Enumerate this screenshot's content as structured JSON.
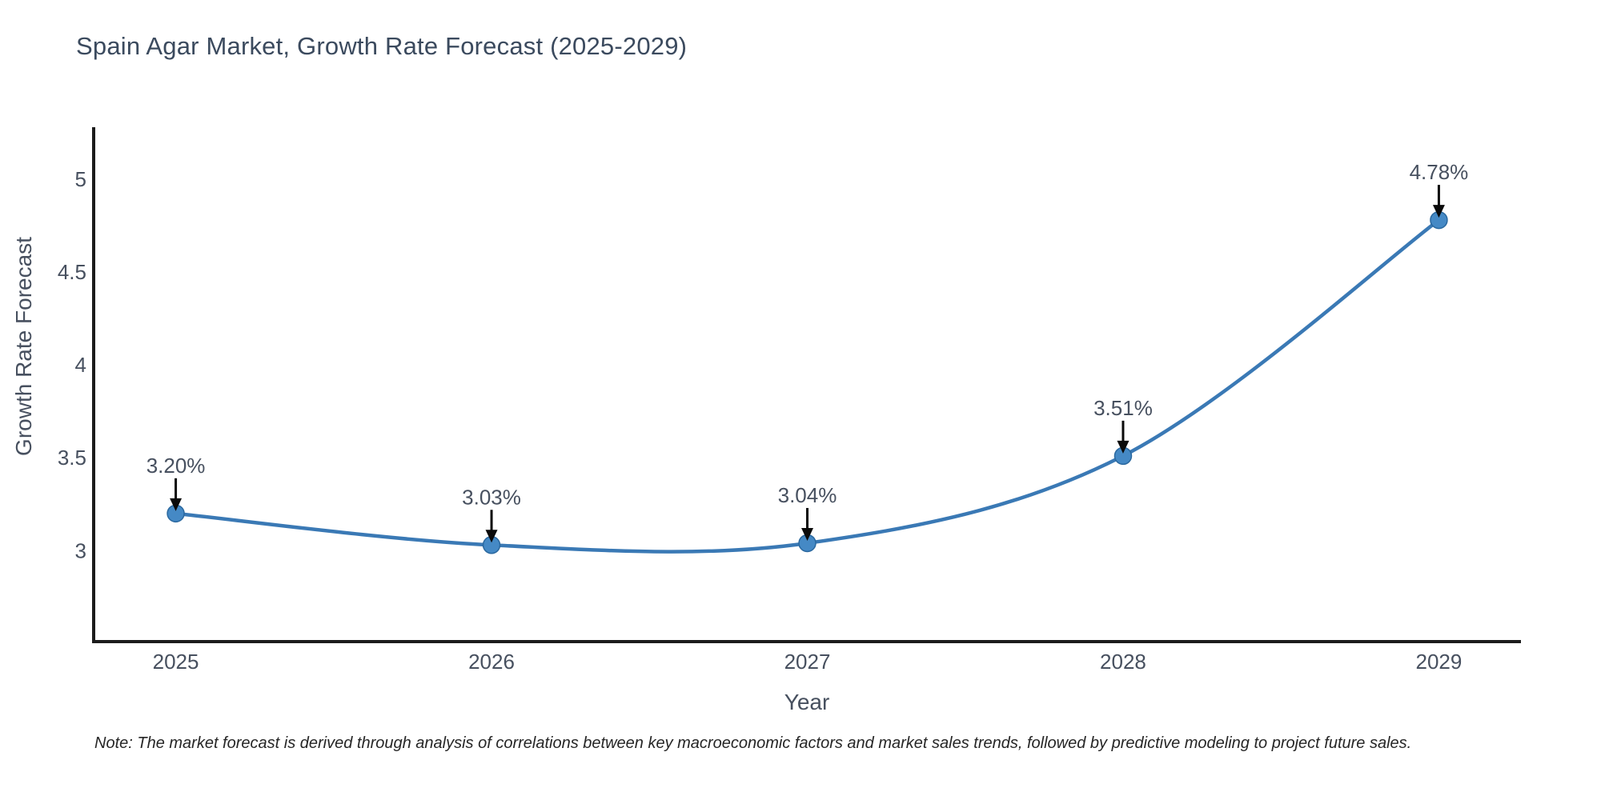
{
  "chart_data": {
    "type": "line",
    "title": "Spain Agar Market, Growth Rate Forecast (2025-2029)",
    "xlabel": "Year",
    "ylabel": "Growth Rate Forecast",
    "x": [
      2025,
      2026,
      2027,
      2028,
      2029
    ],
    "series": [
      {
        "name": "Growth Rate Forecast",
        "values": [
          3.2,
          3.03,
          3.04,
          3.51,
          4.78
        ],
        "point_labels": [
          "3.20%",
          "3.03%",
          "3.04%",
          "3.51%",
          "4.78%"
        ]
      }
    ],
    "xticks": [
      "2025",
      "2026",
      "2027",
      "2028",
      "2029"
    ],
    "yticks": [
      3,
      3.5,
      4,
      4.5,
      5
    ],
    "xlim": [
      2024.74,
      2029.26
    ],
    "ylim": [
      2.51,
      5.28
    ],
    "grid": false,
    "legend": "none",
    "annotation_style": "label-with-down-arrow",
    "marker": "circle",
    "smooth": true,
    "colors": {
      "line": "#3a79b5",
      "marker_fill": "#4589c5",
      "marker_edge": "#2a689f",
      "axis": "#1c1c1c",
      "tick_text": "#47505f",
      "annotation_text": "#47505f",
      "arrow": "#0a0a0a",
      "title_text": "#3b4a5e",
      "note_text": "#262626"
    },
    "note": "Note: The market forecast is derived through analysis of correlations between key macroeconomic factors and market sales trends, followed by predictive modeling to project future sales."
  }
}
